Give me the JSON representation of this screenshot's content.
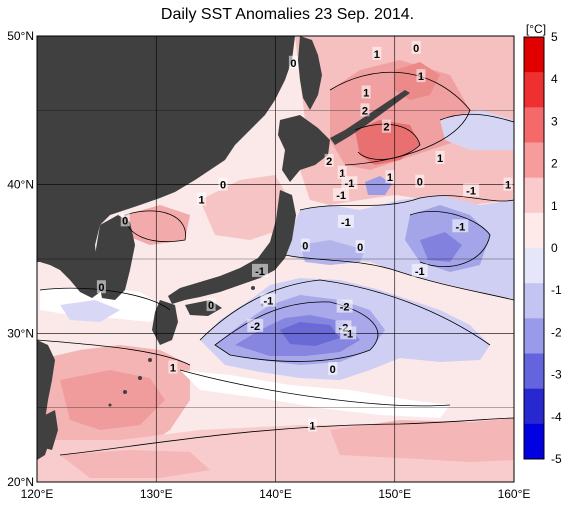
{
  "title": "Daily SST Anomalies 23 Sep. 2014.",
  "map": {
    "lon_range": [
      120,
      160
    ],
    "lat_range": [
      20,
      50
    ],
    "lon_ticks": [
      {
        "value": 120,
        "label": "120°E"
      },
      {
        "value": 130,
        "label": "130°E"
      },
      {
        "value": 140,
        "label": "140°E"
      },
      {
        "value": 150,
        "label": "150°E"
      },
      {
        "value": 160,
        "label": "160°E"
      }
    ],
    "lat_ticks": [
      {
        "value": 20,
        "label": "20°N"
      },
      {
        "value": 30,
        "label": "30°N"
      },
      {
        "value": 40,
        "label": "40°N"
      },
      {
        "value": 50,
        "label": "50°N"
      }
    ],
    "land_color": "#404040",
    "colors": {
      "strong_pos": "#e8545a",
      "pos": "#f2a4a4",
      "weak_pos": "#fad4d4",
      "neutral": "#ffffff",
      "weak_neg": "#d2d2f4",
      "neg": "#a8a8ea",
      "strong_neg": "#6e6ed8"
    },
    "contour_labels": [
      {
        "text": "0",
        "lon": 141.5,
        "lat": 48.2
      },
      {
        "text": "1",
        "lon": 148.5,
        "lat": 48.8
      },
      {
        "text": "0",
        "lon": 151.8,
        "lat": 49.2
      },
      {
        "text": "1",
        "lon": 152.2,
        "lat": 47.3
      },
      {
        "text": "1",
        "lon": 147.6,
        "lat": 46.2
      },
      {
        "text": "2",
        "lon": 147.5,
        "lat": 45.0
      },
      {
        "text": "2",
        "lon": 149.3,
        "lat": 43.9
      },
      {
        "text": "1",
        "lon": 153.8,
        "lat": 41.8
      },
      {
        "text": "2",
        "lon": 144.5,
        "lat": 41.6
      },
      {
        "text": "1",
        "lon": 145.6,
        "lat": 40.8
      },
      {
        "text": "-1",
        "lon": 146.2,
        "lat": 40.1
      },
      {
        "text": "1",
        "lon": 149.6,
        "lat": 40.5
      },
      {
        "text": "0",
        "lon": 152.1,
        "lat": 40.2
      },
      {
        "text": "1",
        "lon": 159.5,
        "lat": 40.0
      },
      {
        "text": "-1",
        "lon": 156.4,
        "lat": 39.6
      },
      {
        "text": "-1",
        "lon": 145.5,
        "lat": 39.3
      },
      {
        "text": "-1",
        "lon": 145.9,
        "lat": 37.5
      },
      {
        "text": "-1",
        "lon": 155.5,
        "lat": 37.2
      },
      {
        "text": "0",
        "lon": 147.1,
        "lat": 35.8
      },
      {
        "text": "0",
        "lon": 142.5,
        "lat": 35.9
      },
      {
        "text": "-1",
        "lon": 138.7,
        "lat": 34.2
      },
      {
        "text": "-1",
        "lon": 152.1,
        "lat": 34.2
      },
      {
        "text": "-1",
        "lon": 139.4,
        "lat": 32.2
      },
      {
        "text": "-2",
        "lon": 145.8,
        "lat": 31.8
      },
      {
        "text": "-2",
        "lon": 138.3,
        "lat": 30.5
      },
      {
        "text": "-2",
        "lon": 145.7,
        "lat": 30.4
      },
      {
        "text": "-1",
        "lon": 146.1,
        "lat": 30.0
      },
      {
        "text": "0",
        "lon": 134.6,
        "lat": 31.9
      },
      {
        "text": "0",
        "lon": 144.8,
        "lat": 27.6
      },
      {
        "text": "1",
        "lon": 131.4,
        "lat": 27.7
      },
      {
        "text": "1",
        "lon": 143.1,
        "lat": 23.8
      },
      {
        "text": "1",
        "lon": 133.8,
        "lat": 39.0
      },
      {
        "text": "0",
        "lon": 135.6,
        "lat": 40.0
      },
      {
        "text": "0",
        "lon": 127.4,
        "lat": 37.6
      },
      {
        "text": "0",
        "lon": 125.4,
        "lat": 33.1
      }
    ]
  },
  "colorbar": {
    "unit": "[°C]",
    "ticks": [
      "5",
      "4",
      "3",
      "2",
      "1",
      "0",
      "-1",
      "-2",
      "-3",
      "-4",
      "-5"
    ],
    "colors": [
      "#e00000",
      "#ee3030",
      "#f46a6a",
      "#f79c9c",
      "#fbcaca",
      "#ffeaea",
      "#e6e6fa",
      "#c4c4f2",
      "#9a9aea",
      "#6464de",
      "#2828d0",
      "#0000e0"
    ]
  }
}
